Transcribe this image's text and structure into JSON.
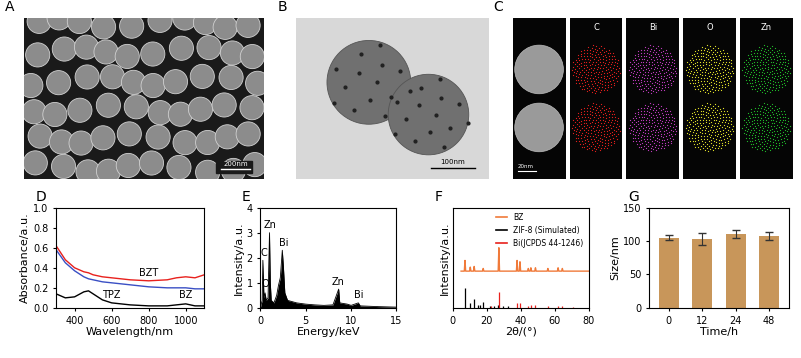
{
  "images": {
    "A": {
      "title": "A",
      "scale_bar": "200nm"
    },
    "B": {
      "title": "B",
      "scale_bar": "100nm"
    },
    "C": {
      "title": "C",
      "scale_bar": "20nm",
      "maps": [
        {
          "label": "C",
          "color": "#e8211d"
        },
        {
          "label": "Bi",
          "color": "#c43dc4"
        },
        {
          "label": "O",
          "color": "#e6e62a"
        },
        {
          "label": "Zn",
          "color": "#22c02a"
        }
      ]
    }
  },
  "chart_data": [
    {
      "title": "D",
      "type": "line",
      "x_label": "Wavelength/nm",
      "y_label": "Absorbance/a.u.",
      "x": [
        300,
        350,
        400,
        450,
        475,
        500,
        550,
        600,
        700,
        800,
        900,
        950,
        1000,
        1050,
        1100
      ],
      "series": [
        {
          "name": "BZT",
          "color": "#e8211d",
          "values": [
            0.62,
            0.48,
            0.4,
            0.36,
            0.35,
            0.33,
            0.31,
            0.3,
            0.28,
            0.27,
            0.28,
            0.3,
            0.31,
            0.3,
            0.33
          ]
        },
        {
          "name": "BZ",
          "color": "#3a4fc4",
          "values": [
            0.58,
            0.45,
            0.37,
            0.31,
            0.29,
            0.28,
            0.26,
            0.25,
            0.23,
            0.21,
            0.2,
            0.2,
            0.2,
            0.19,
            0.19
          ]
        },
        {
          "name": "TPZ",
          "color": "#000000",
          "values": [
            0.14,
            0.1,
            0.11,
            0.16,
            0.17,
            0.14,
            0.08,
            0.05,
            0.03,
            0.02,
            0.02,
            0.03,
            0.04,
            0.02,
            0.02
          ]
        }
      ],
      "xlim": [
        300,
        1100
      ],
      "xticks": [
        400,
        600,
        800,
        1000
      ],
      "ylim": [
        0,
        1.0
      ],
      "yticks": [
        {
          "value": 0,
          "label": "0.0"
        },
        {
          "value": 0.2,
          "label": "0.2"
        },
        {
          "value": 0.4,
          "label": "0.4"
        },
        {
          "value": 0.6,
          "label": "0.6"
        },
        {
          "value": 0.8,
          "label": "0.8"
        },
        {
          "value": 1.0,
          "label": "1.0"
        }
      ]
    },
    {
      "title": "E",
      "type": "area",
      "x_label": "Energy/keV",
      "y_label": "Intensity/a.u.",
      "color": "#000000",
      "x": [
        0.0,
        0.2,
        0.28,
        0.4,
        0.52,
        0.65,
        0.85,
        1.01,
        1.1,
        1.2,
        1.5,
        1.8,
        2.0,
        2.2,
        2.42,
        2.55,
        2.7,
        3.0,
        3.5,
        4.0,
        5.0,
        6.0,
        7.0,
        8.0,
        8.63,
        8.75,
        9.57,
        10.0,
        10.8,
        11.0,
        13.0,
        15.0
      ],
      "values": [
        0,
        0.3,
        1.9,
        0.4,
        0.6,
        0.3,
        0.4,
        3.0,
        1.0,
        0.3,
        0.2,
        0.5,
        0.9,
        1.2,
        2.3,
        1.6,
        0.6,
        0.3,
        0.25,
        0.2,
        0.15,
        0.12,
        0.1,
        0.12,
        0.75,
        0.2,
        0.15,
        0.1,
        0.2,
        0.08,
        0.05,
        0.03
      ],
      "annotations": [
        {
          "text": "C",
          "x": 0.4,
          "y": 2.0
        },
        {
          "text": "O",
          "x": 0.55,
          "y": 0.75
        },
        {
          "text": "Zn",
          "x": 1.05,
          "y": 3.1
        },
        {
          "text": "Bi",
          "x": 2.6,
          "y": 2.4
        },
        {
          "text": "Zn",
          "x": 8.6,
          "y": 0.85
        },
        {
          "text": "Bi",
          "x": 10.8,
          "y": 0.3
        }
      ],
      "xlim": [
        0,
        15
      ],
      "xticks": [
        0,
        5,
        10,
        15
      ],
      "ylim": [
        0,
        4
      ],
      "yticks": [
        0,
        1,
        2,
        3,
        4
      ]
    },
    {
      "title": "F",
      "type": "line",
      "x_label": "2θ/(°)",
      "y_label": "Intensity/a.u.",
      "series": [
        {
          "name": "BZ",
          "color": "#f07a3a",
          "type": "line",
          "x": [
            5,
            6.9,
            7.3,
            7.7,
            10.0,
            10.4,
            10.8,
            12.3,
            12.7,
            13.1,
            17.6,
            18.0,
            18.4,
            26.8,
            27.2,
            27.6,
            37.5,
            37.9,
            38.3,
            39.2,
            39.6,
            40.0,
            44.1,
            44.5,
            44.9,
            45.6,
            46.0,
            46.4,
            48.3,
            48.7,
            49.1,
            55.6,
            56.0,
            56.4,
            61.6,
            62.0,
            62.4,
            64.1,
            64.5,
            64.9,
            80
          ],
          "values": [
            5.5,
            5.5,
            7.1,
            5.5,
            5.5,
            6.1,
            5.5,
            5.5,
            6.2,
            5.5,
            5.5,
            5.9,
            5.5,
            5.5,
            9.0,
            5.5,
            5.5,
            7.1,
            5.5,
            5.5,
            6.9,
            5.5,
            5.5,
            5.9,
            5.5,
            5.5,
            6.0,
            5.5,
            5.5,
            6.0,
            5.5,
            5.5,
            5.9,
            5.5,
            5.5,
            6.0,
            5.5,
            5.5,
            5.9,
            5.5,
            5.5
          ]
        },
        {
          "name": "ZIF-8 (Simulated)",
          "color": "#000000",
          "type": "stick",
          "x": [
            7.3,
            10.4,
            12.7,
            14.7,
            16.4,
            18.0,
            22.1,
            24.5,
            26.7,
            29.6,
            32.4
          ],
          "values": [
            3.0,
            0.8,
            1.3,
            0.4,
            0.5,
            0.9,
            0.3,
            0.3,
            0.4,
            0.3,
            0.3
          ]
        },
        {
          "name": "Bi(JCPDS 44-1246)",
          "color": "#e8211d",
          "type": "stick",
          "x": [
            22.5,
            27.2,
            37.9,
            39.6,
            44.6,
            46.0,
            48.7,
            56.0,
            62.2,
            64.5,
            71.0
          ],
          "values": [
            0.3,
            2.4,
            0.8,
            0.8,
            0.3,
            0.4,
            0.4,
            0.3,
            0.3,
            0.3,
            0.2
          ]
        }
      ],
      "legend": "upper right",
      "tick_labels": "x",
      "xlim": [
        0,
        80
      ],
      "xticks": [
        0,
        20,
        40,
        60,
        80
      ],
      "ylim": [
        0,
        15
      ],
      "yticks": []
    },
    {
      "title": "G",
      "type": "bar",
      "x_label": "Time/h",
      "y_label": "Size/nm",
      "categories": [
        "0",
        "12",
        "24",
        "48"
      ],
      "values": [
        105,
        103,
        110,
        107
      ],
      "errors": [
        4,
        9,
        6,
        6
      ],
      "color": "#c8965a",
      "ylim": [
        0,
        150
      ],
      "yticks": [
        0,
        50,
        100,
        150
      ]
    }
  ]
}
